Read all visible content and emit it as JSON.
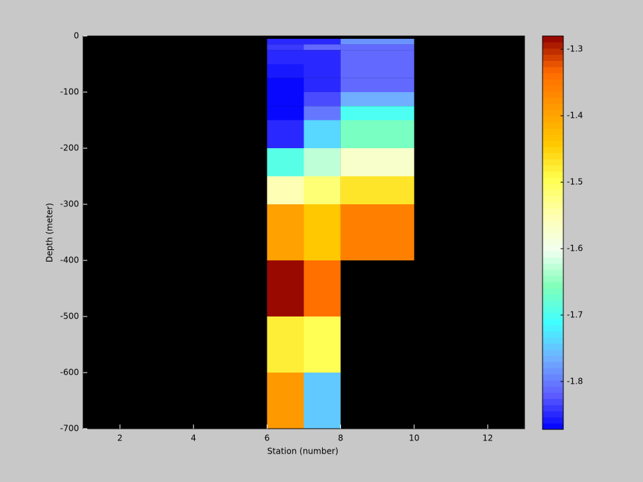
{
  "chart_data": {
    "type": "heatmap",
    "xlabel": "Station (number)",
    "ylabel": "Depth (meter)",
    "xlim": [
      1,
      13
    ],
    "xticks": [
      2,
      4,
      6,
      8,
      10,
      12
    ],
    "ylim": [
      -700,
      0
    ],
    "yticks": [
      0,
      -100,
      -200,
      -300,
      -400,
      -500,
      -600,
      -700
    ],
    "x_edges": [
      6,
      7,
      8,
      10
    ],
    "y_edges": [
      -5,
      -15,
      -25,
      -50,
      -75,
      -100,
      -125,
      -150,
      -200,
      -250,
      -300,
      -400,
      -500,
      -600,
      -700
    ],
    "z": [
      [
        -1.85,
        -1.85,
        -1.78
      ],
      [
        -1.84,
        -1.81,
        -1.81
      ],
      [
        -1.85,
        -1.85,
        -1.81
      ],
      [
        -1.86,
        -1.85,
        -1.81
      ],
      [
        -1.87,
        -1.85,
        -1.81
      ],
      [
        -1.87,
        -1.83,
        -1.77
      ],
      [
        -1.87,
        -1.8,
        -1.7
      ],
      [
        -1.85,
        -1.74,
        -1.66
      ],
      [
        -1.69,
        -1.63,
        -1.57
      ],
      [
        -1.55,
        -1.52,
        -1.47
      ],
      [
        -1.4,
        -1.44,
        -1.36
      ],
      [
        -1.28,
        -1.34,
        null
      ],
      [
        -1.48,
        -1.5,
        null
      ],
      [
        -1.39,
        -1.75,
        null
      ]
    ],
    "clim": [
      -1.872,
      -1.28
    ],
    "cticks": [
      -1.3,
      -1.4,
      -1.5,
      -1.6,
      -1.7,
      -1.8
    ],
    "colormap": [
      "#0000ff",
      "#6060ff",
      "#70b0ff",
      "#40ffff",
      "#80ffb8",
      "#f0fff0",
      "#ffffb0",
      "#ffff50",
      "#ffc800",
      "#ff9a00",
      "#ff6a00",
      "#900000"
    ],
    "levels": 64,
    "axes_color": "#000000"
  }
}
